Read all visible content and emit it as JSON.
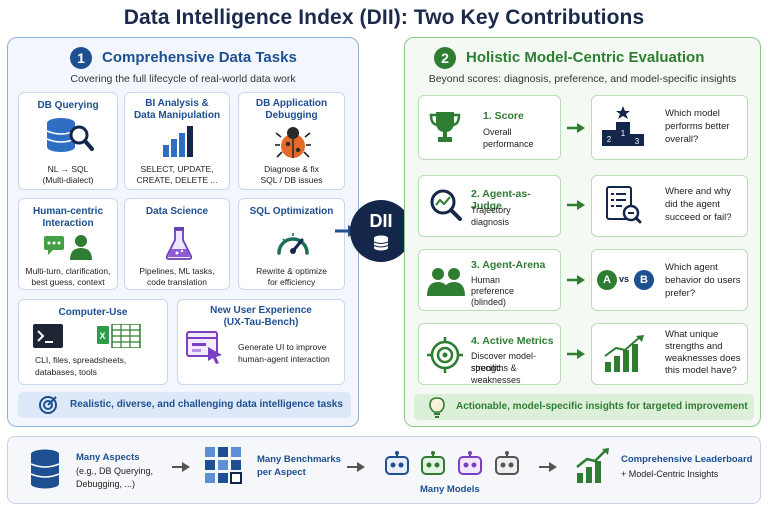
{
  "title": "Data Intelligence Index (DII): Two Key Contributions",
  "left": {
    "number": "1",
    "title": "Comprehensive Data Tasks",
    "subtitle": "Covering the full lifecycle of real-world data work",
    "cards": [
      {
        "title": "DB Querying",
        "desc1": "NL → SQL",
        "desc2": "(Multi-dialect)",
        "icon": "database-search-icon"
      },
      {
        "title1": "BI Analysis &",
        "title2": "Data Manipulation",
        "desc1": "SELECT, UPDATE,",
        "desc2": "CREATE, DELETE ...",
        "icon": "bar-chart-icon"
      },
      {
        "title1": "DB Application",
        "title2": "Debugging",
        "desc1": "Diagnose & fix",
        "desc2": "SQL / DB issues",
        "icon": "bug-icon"
      },
      {
        "title1": "Human-centric",
        "title2": "Interaction",
        "desc1": "Multi-turn, clarification,",
        "desc2": "best guess, context",
        "icon": "chat-user-icon"
      },
      {
        "title": "Data Science",
        "desc1": "Pipelines, ML tasks,",
        "desc2": "code translation",
        "icon": "flask-icon"
      },
      {
        "title": "SQL Optimization",
        "desc1": "Rewrite & optimize",
        "desc2": "for efficiency",
        "icon": "gauge-icon"
      },
      {
        "title": "Computer-Use",
        "desc1": "CLI, files, spreadsheets,",
        "desc2": "databases, tools",
        "icon": "terminal-icon"
      },
      {
        "title1": "New User Experience",
        "title2": "(UX-Tau-Bench)",
        "desc1": "Generate UI to improve",
        "desc2": "human-agent interaction",
        "icon": "ui-window-icon"
      }
    ],
    "footer": "Realistic, diverse, and challenging data intelligence tasks"
  },
  "center": {
    "label": "DII"
  },
  "right": {
    "number": "2",
    "title": "Holistic Model-Centric Evaluation",
    "subtitle": "Beyond scores: diagnosis, preference, and model-specific insights",
    "rows": [
      {
        "title": "1. Score",
        "desc1": "Overall",
        "desc2": "performance",
        "desc3": "",
        "q1": "Which model",
        "q2": "performs better",
        "q3": "overall?"
      },
      {
        "title": "2. Agent-as-Judge",
        "desc1": "Trajectory",
        "desc2": "diagnosis",
        "desc3": "",
        "q1": "Where and why",
        "q2": "did the agent",
        "q3": "succeed or fail?"
      },
      {
        "title": "3. Agent-Arena",
        "desc1": "Human",
        "desc2": "preference",
        "desc3": "(blinded)",
        "q1": "Which agent",
        "q2": "behavior do users",
        "q3": "prefer?"
      },
      {
        "title": "4. Active Metrics",
        "desc1": "Discover model-specific",
        "desc2": "strengths & weaknesses",
        "desc3": "",
        "q1": "What unique",
        "q2": "strengths and",
        "q3": "weaknesses does",
        "q4": "this model have?"
      }
    ],
    "podium": {
      "p1": "1",
      "p2": "2",
      "p3": "3"
    },
    "arena": {
      "a": "A",
      "vs": "vs",
      "b": "B"
    },
    "footer": "Actionable, model-specific insights for targeted improvement"
  },
  "bottom": {
    "aspects_title": "Many Aspects",
    "aspects_desc1": "(e.g., DB Querying,",
    "aspects_desc2": "Debugging, ...)",
    "benchmarks1": "Many Benchmarks",
    "benchmarks2": "per Aspect",
    "models": "Many Models",
    "leaderboard1": "Comprehensive Leaderboard",
    "leaderboard2": "+ Model-Centric Insights"
  },
  "colors": {
    "blue": "#1d4f91",
    "green": "#2e7d32",
    "navy": "#14264a"
  }
}
